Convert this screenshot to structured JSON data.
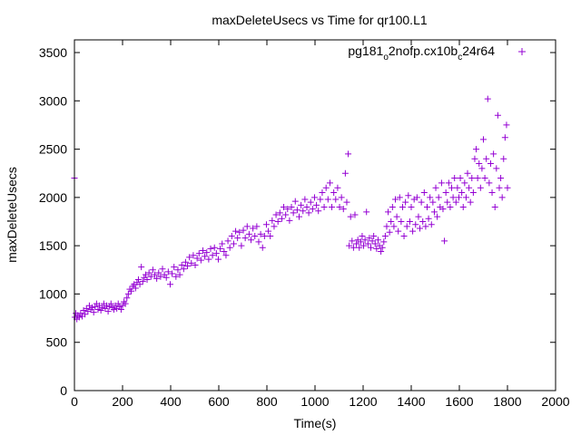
{
  "chart_data": {
    "type": "scatter",
    "title": "maxDeleteUsecs vs Time for qr100.L1",
    "xlabel": "Time(s)",
    "ylabel": "maxDeleteUsecs",
    "xlim": [
      0,
      2000
    ],
    "ylim": [
      0,
      3600
    ],
    "xticks": [
      0,
      200,
      400,
      600,
      800,
      1000,
      1200,
      1400,
      1600,
      1800,
      2000
    ],
    "yticks": [
      0,
      500,
      1000,
      1500,
      2000,
      2500,
      3000,
      3500
    ],
    "grid": false,
    "legend": {
      "position": "top-right",
      "main": "pg181",
      "sub1": "o",
      "mid": "2nofp.cx10b",
      "sub2": "c",
      "tail": "24r64"
    },
    "series": [
      {
        "name": "pg181_o2nofp.cx10b_c24r64",
        "color": "#9400d3",
        "marker": "plus",
        "points": [
          [
            0,
            2200
          ],
          [
            2,
            760
          ],
          [
            6,
            800
          ],
          [
            10,
            740
          ],
          [
            14,
            780
          ],
          [
            20,
            760
          ],
          [
            26,
            800
          ],
          [
            32,
            770
          ],
          [
            38,
            830
          ],
          [
            44,
            790
          ],
          [
            50,
            850
          ],
          [
            56,
            820
          ],
          [
            62,
            880
          ],
          [
            68,
            840
          ],
          [
            74,
            860
          ],
          [
            80,
            810
          ],
          [
            86,
            870
          ],
          [
            92,
            900
          ],
          [
            98,
            840
          ],
          [
            104,
            880
          ],
          [
            110,
            830
          ],
          [
            116,
            860
          ],
          [
            122,
            900
          ],
          [
            128,
            850
          ],
          [
            134,
            880
          ],
          [
            140,
            820
          ],
          [
            146,
            870
          ],
          [
            152,
            900
          ],
          [
            158,
            860
          ],
          [
            164,
            840
          ],
          [
            170,
            880
          ],
          [
            176,
            850
          ],
          [
            182,
            900
          ],
          [
            188,
            870
          ],
          [
            194,
            840
          ],
          [
            200,
            880
          ],
          [
            206,
            920
          ],
          [
            212,
            900
          ],
          [
            218,
            960
          ],
          [
            224,
            1000
          ],
          [
            230,
            1050
          ],
          [
            236,
            1030
          ],
          [
            242,
            1080
          ],
          [
            248,
            1100
          ],
          [
            254,
            1060
          ],
          [
            260,
            1120
          ],
          [
            266,
            1150
          ],
          [
            272,
            1100
          ],
          [
            278,
            1280
          ],
          [
            284,
            1130
          ],
          [
            290,
            1170
          ],
          [
            296,
            1200
          ],
          [
            302,
            1150
          ],
          [
            310,
            1220
          ],
          [
            318,
            1180
          ],
          [
            326,
            1250
          ],
          [
            334,
            1200
          ],
          [
            342,
            1160
          ],
          [
            350,
            1220
          ],
          [
            358,
            1180
          ],
          [
            366,
            1260
          ],
          [
            374,
            1200
          ],
          [
            382,
            1170
          ],
          [
            390,
            1230
          ],
          [
            398,
            1100
          ],
          [
            406,
            1210
          ],
          [
            414,
            1280
          ],
          [
            422,
            1180
          ],
          [
            430,
            1250
          ],
          [
            438,
            1200
          ],
          [
            446,
            1300
          ],
          [
            454,
            1260
          ],
          [
            462,
            1330
          ],
          [
            470,
            1290
          ],
          [
            478,
            1380
          ],
          [
            486,
            1320
          ],
          [
            494,
            1400
          ],
          [
            502,
            1300
          ],
          [
            510,
            1370
          ],
          [
            518,
            1420
          ],
          [
            526,
            1350
          ],
          [
            534,
            1450
          ],
          [
            542,
            1390
          ],
          [
            550,
            1430
          ],
          [
            558,
            1360
          ],
          [
            566,
            1470
          ],
          [
            574,
            1400
          ],
          [
            582,
            1480
          ],
          [
            590,
            1420
          ],
          [
            598,
            1360
          ],
          [
            606,
            1470
          ],
          [
            614,
            1520
          ],
          [
            622,
            1440
          ],
          [
            630,
            1400
          ],
          [
            638,
            1550
          ],
          [
            646,
            1480
          ],
          [
            654,
            1600
          ],
          [
            662,
            1520
          ],
          [
            670,
            1650
          ],
          [
            678,
            1580
          ],
          [
            686,
            1640
          ],
          [
            694,
            1500
          ],
          [
            702,
            1660
          ],
          [
            710,
            1580
          ],
          [
            718,
            1700
          ],
          [
            726,
            1620
          ],
          [
            734,
            1560
          ],
          [
            742,
            1680
          ],
          [
            750,
            1600
          ],
          [
            758,
            1700
          ],
          [
            766,
            1540
          ],
          [
            774,
            1620
          ],
          [
            782,
            1480
          ],
          [
            790,
            1600
          ],
          [
            798,
            1720
          ],
          [
            806,
            1650
          ],
          [
            814,
            1600
          ],
          [
            822,
            1760
          ],
          [
            830,
            1700
          ],
          [
            838,
            1820
          ],
          [
            846,
            1750
          ],
          [
            854,
            1840
          ],
          [
            862,
            1780
          ],
          [
            870,
            1900
          ],
          [
            878,
            1820
          ],
          [
            886,
            1880
          ],
          [
            894,
            1760
          ],
          [
            902,
            1900
          ],
          [
            910,
            1840
          ],
          [
            918,
            1960
          ],
          [
            926,
            1870
          ],
          [
            934,
            1800
          ],
          [
            942,
            1920
          ],
          [
            950,
            1860
          ],
          [
            958,
            1980
          ],
          [
            966,
            1900
          ],
          [
            974,
            1840
          ],
          [
            982,
            1950
          ],
          [
            990,
            1880
          ],
          [
            998,
            2000
          ],
          [
            1006,
            1920
          ],
          [
            1014,
            1860
          ],
          [
            1022,
            1980
          ],
          [
            1030,
            2050
          ],
          [
            1038,
            1900
          ],
          [
            1046,
            2100
          ],
          [
            1054,
            1980
          ],
          [
            1062,
            2150
          ],
          [
            1070,
            1900
          ],
          [
            1078,
            2050
          ],
          [
            1086,
            1980
          ],
          [
            1094,
            2100
          ],
          [
            1102,
            1900
          ],
          [
            1110,
            2000
          ],
          [
            1118,
            1880
          ],
          [
            1126,
            2250
          ],
          [
            1132,
            1950
          ],
          [
            1138,
            2450
          ],
          [
            1142,
            1500
          ],
          [
            1148,
            1800
          ],
          [
            1154,
            1550
          ],
          [
            1160,
            1480
          ],
          [
            1166,
            1820
          ],
          [
            1172,
            1520
          ],
          [
            1178,
            1560
          ],
          [
            1184,
            1480
          ],
          [
            1190,
            1540
          ],
          [
            1196,
            1600
          ],
          [
            1202,
            1500
          ],
          [
            1208,
            1560
          ],
          [
            1214,
            1850
          ],
          [
            1220,
            1520
          ],
          [
            1226,
            1580
          ],
          [
            1232,
            1480
          ],
          [
            1238,
            1550
          ],
          [
            1244,
            1600
          ],
          [
            1250,
            1520
          ],
          [
            1256,
            1470
          ],
          [
            1262,
            1560
          ],
          [
            1268,
            1500
          ],
          [
            1274,
            1440
          ],
          [
            1280,
            1480
          ],
          [
            1286,
            1540
          ],
          [
            1292,
            1600
          ],
          [
            1298,
            1700
          ],
          [
            1304,
            1850
          ],
          [
            1310,
            1640
          ],
          [
            1316,
            1750
          ],
          [
            1322,
            1900
          ],
          [
            1328,
            1700
          ],
          [
            1334,
            1980
          ],
          [
            1340,
            1800
          ],
          [
            1346,
            1650
          ],
          [
            1352,
            2000
          ],
          [
            1358,
            1750
          ],
          [
            1364,
            1900
          ],
          [
            1370,
            1600
          ],
          [
            1376,
            1950
          ],
          [
            1382,
            1700
          ],
          [
            1388,
            2020
          ],
          [
            1394,
            1750
          ],
          [
            1400,
            1900
          ],
          [
            1406,
            1650
          ],
          [
            1412,
            1980
          ],
          [
            1418,
            1720
          ],
          [
            1424,
            2000
          ],
          [
            1430,
            1800
          ],
          [
            1436,
            1680
          ],
          [
            1442,
            1950
          ],
          [
            1448,
            1750
          ],
          [
            1454,
            2050
          ],
          [
            1460,
            1700
          ],
          [
            1466,
            1900
          ],
          [
            1472,
            1780
          ],
          [
            1478,
            2000
          ],
          [
            1484,
            1720
          ],
          [
            1490,
            1950
          ],
          [
            1496,
            1850
          ],
          [
            1502,
            2100
          ],
          [
            1508,
            1800
          ],
          [
            1514,
            2000
          ],
          [
            1520,
            1900
          ],
          [
            1526,
            2150
          ],
          [
            1532,
            1880
          ],
          [
            1538,
            1550
          ],
          [
            1544,
            2050
          ],
          [
            1550,
            1950
          ],
          [
            1556,
            2150
          ],
          [
            1562,
            1900
          ],
          [
            1568,
            2100
          ],
          [
            1574,
            2000
          ],
          [
            1580,
            2200
          ],
          [
            1586,
            1950
          ],
          [
            1592,
            2100
          ],
          [
            1598,
            2000
          ],
          [
            1604,
            2200
          ],
          [
            1610,
            2050
          ],
          [
            1616,
            1900
          ],
          [
            1622,
            2150
          ],
          [
            1628,
            2000
          ],
          [
            1634,
            2250
          ],
          [
            1640,
            2100
          ],
          [
            1646,
            1950
          ],
          [
            1652,
            2200
          ],
          [
            1658,
            2050
          ],
          [
            1664,
            2400
          ],
          [
            1670,
            2500
          ],
          [
            1676,
            2200
          ],
          [
            1682,
            2350
          ],
          [
            1688,
            2100
          ],
          [
            1694,
            2300
          ],
          [
            1700,
            2600
          ],
          [
            1706,
            2200
          ],
          [
            1712,
            2400
          ],
          [
            1718,
            3020
          ],
          [
            1724,
            2150
          ],
          [
            1730,
            2350
          ],
          [
            1736,
            2050
          ],
          [
            1742,
            2450
          ],
          [
            1748,
            1900
          ],
          [
            1754,
            2300
          ],
          [
            1760,
            2850
          ],
          [
            1766,
            2100
          ],
          [
            1772,
            2200
          ],
          [
            1778,
            2000
          ],
          [
            1784,
            2400
          ],
          [
            1790,
            2620
          ],
          [
            1796,
            2750
          ],
          [
            1800,
            2100
          ]
        ]
      }
    ]
  }
}
